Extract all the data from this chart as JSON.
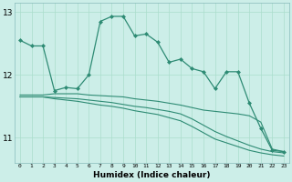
{
  "xlabel": "Humidex (Indice chaleur)",
  "x": [
    0,
    1,
    2,
    3,
    4,
    5,
    6,
    7,
    8,
    9,
    10,
    11,
    12,
    13,
    14,
    15,
    16,
    17,
    18,
    19,
    20,
    21,
    22,
    23
  ],
  "line1": [
    12.55,
    12.46,
    12.46,
    11.75,
    11.8,
    11.78,
    12.0,
    12.85,
    12.93,
    12.93,
    12.62,
    12.65,
    12.52,
    12.2,
    12.25,
    12.1,
    12.05,
    11.78,
    12.05,
    12.05,
    11.55,
    11.15,
    10.8,
    10.78
  ],
  "line2": [
    11.68,
    11.68,
    11.68,
    11.7,
    11.7,
    11.7,
    11.68,
    11.67,
    11.66,
    11.65,
    11.62,
    11.6,
    11.58,
    11.55,
    11.52,
    11.48,
    11.44,
    11.42,
    11.4,
    11.38,
    11.35,
    11.25,
    10.82,
    10.78
  ],
  "line3": [
    11.65,
    11.65,
    11.65,
    11.64,
    11.63,
    11.62,
    11.6,
    11.58,
    11.56,
    11.53,
    11.5,
    11.48,
    11.45,
    11.42,
    11.38,
    11.3,
    11.2,
    11.1,
    11.02,
    10.95,
    10.88,
    10.82,
    10.78,
    10.76
  ],
  "line4": [
    11.65,
    11.65,
    11.65,
    11.62,
    11.6,
    11.58,
    11.55,
    11.52,
    11.5,
    11.47,
    11.43,
    11.4,
    11.37,
    11.32,
    11.27,
    11.18,
    11.08,
    10.98,
    10.92,
    10.86,
    10.8,
    10.76,
    10.73,
    10.71
  ],
  "color": "#2e8b74",
  "bg_color": "#cceee8",
  "grid_color": "#aaddcc",
  "ylim_min": 10.6,
  "ylim_max": 13.15,
  "yticks": [
    11,
    12,
    13
  ],
  "xticks": [
    0,
    1,
    2,
    3,
    4,
    5,
    6,
    7,
    8,
    9,
    10,
    11,
    12,
    13,
    14,
    15,
    16,
    17,
    18,
    19,
    20,
    21,
    22,
    23
  ]
}
